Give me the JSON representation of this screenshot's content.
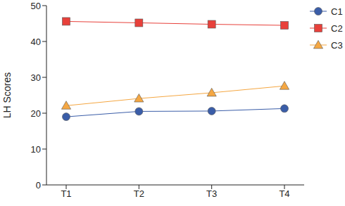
{
  "chart_data": {
    "type": "line",
    "categories": [
      "T1",
      "T2",
      "T3",
      "T4"
    ],
    "y_label": "LH Scores",
    "ylim": [
      0,
      50
    ],
    "yticks": [
      0,
      10,
      20,
      30,
      40,
      50
    ],
    "grid": false,
    "legend": "upper right",
    "series": [
      {
        "name": "C1",
        "color": "#3a5da8",
        "marker": "circle",
        "line_style": "solid",
        "values": [
          19.0,
          20.5,
          20.6,
          21.3
        ]
      },
      {
        "name": "C2",
        "color": "#e8403a",
        "marker": "square",
        "line_style": "solid",
        "values": [
          45.6,
          45.2,
          44.8,
          44.5
        ]
      },
      {
        "name": "C3",
        "color": "#f5a742",
        "marker": "triangle",
        "line_style": "solid",
        "values": [
          22.1,
          24.1,
          25.7,
          27.6
        ]
      }
    ]
  }
}
